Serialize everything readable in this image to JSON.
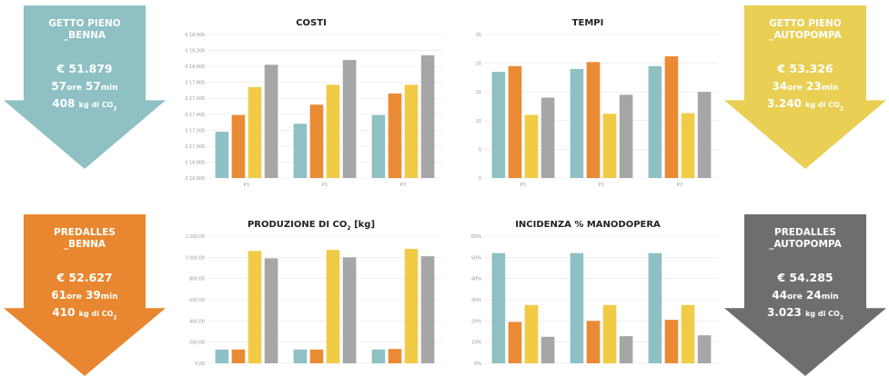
{
  "colors": {
    "teal": "#8ec0c4",
    "orange": "#ea8a34",
    "yellow": "#f1cb46",
    "gray": "#a6a6a6",
    "dark_gray": "#6e6e6e",
    "grid": "#e6e6e6"
  },
  "arrows": [
    {
      "id": "getto-benna",
      "line1": "GETTO PIENO",
      "line2": "_BENNA",
      "cost": "€ 51.879",
      "hours": "57",
      "hours_unit": "ore",
      "minutes": "57",
      "minutes_unit": "min",
      "co2": "408",
      "co2_unit": "kg di CO",
      "co2_sub": "2",
      "color": "#8ec0c4"
    },
    {
      "id": "getto-autopompa",
      "line1": "GETTO PIENO",
      "line2": "_AUTOPOMPA",
      "cost": "€ 53.326",
      "hours": "34",
      "hours_unit": "ore",
      "minutes": "23",
      "minutes_unit": "min",
      "co2": "3.240",
      "co2_unit": "kg di CO",
      "co2_sub": "2",
      "color": "#e9cf53"
    },
    {
      "id": "predalles-benna",
      "line1": "PREDALLES",
      "line2": "_BENNA",
      "cost": "€ 52.627",
      "hours": "61",
      "hours_unit": "ore",
      "minutes": "39",
      "minutes_unit": "min",
      "co2": "410",
      "co2_unit": "kg di CO",
      "co2_sub": "2",
      "color": "#e8872f"
    },
    {
      "id": "predalles-autopompa",
      "line1": "PREDALLES",
      "line2": "_AUTOPOMPA",
      "cost": "€ 54.285",
      "hours": "44",
      "hours_unit": "ore",
      "minutes": "24",
      "minutes_unit": "min",
      "co2": "3.023",
      "co2_unit": "kg di CO",
      "co2_sub": "2",
      "color": "#6e6e6e"
    }
  ],
  "chart_data": [
    {
      "id": "costi",
      "type": "bar",
      "title": "COSTI",
      "categories": [
        "P1",
        "P1",
        "P2"
      ],
      "ylim": [
        16600,
        18400
      ],
      "yticks": [
        "€ 16.600",
        "€ 16.800",
        "€ 17.000",
        "€ 17.200",
        "€ 17.400",
        "€ 17.600",
        "€ 17.800",
        "€ 18.000",
        "€ 18.200",
        "€ 18.400"
      ],
      "ytick_values": [
        16600,
        16800,
        17000,
        17200,
        17400,
        17600,
        17800,
        18000,
        18200,
        18400
      ],
      "series": [
        {
          "values": [
            17180,
            17280,
            17390
          ]
        },
        {
          "values": [
            17390,
            17520,
            17660
          ]
        },
        {
          "values": [
            17740,
            17770,
            17770
          ]
        },
        {
          "values": [
            18020,
            18080,
            18140
          ]
        }
      ],
      "grid": true
    },
    {
      "id": "tempi",
      "type": "bar",
      "title": "TEMPI",
      "categories": [
        "P1",
        "P1",
        "P2"
      ],
      "ylim": [
        0,
        25
      ],
      "yticks": [
        "0",
        "5",
        "10",
        "15",
        "20",
        "25"
      ],
      "ytick_values": [
        0,
        5,
        10,
        15,
        20,
        25
      ],
      "series": [
        {
          "values": [
            18.5,
            19.0,
            19.5
          ]
        },
        {
          "values": [
            19.5,
            20.2,
            21.2
          ]
        },
        {
          "values": [
            11.0,
            11.2,
            11.3
          ]
        },
        {
          "values": [
            14.0,
            14.5,
            15.0
          ]
        }
      ],
      "grid": true
    },
    {
      "id": "co2",
      "type": "bar",
      "title": "PRODUZIONE DI CO",
      "title_sub": "2",
      "title_suffix": " [kg]",
      "categories": [
        "",
        "",
        ""
      ],
      "ylim": [
        0,
        1200
      ],
      "yticks": [
        "0,00",
        "200,00",
        "400,00",
        "600,00",
        "800,00",
        "1.000,00",
        "1.200,00"
      ],
      "ytick_values": [
        0,
        200,
        400,
        600,
        800,
        1000,
        1200
      ],
      "series": [
        {
          "values": [
            130,
            130,
            130
          ]
        },
        {
          "values": [
            130,
            130,
            135
          ]
        },
        {
          "values": [
            1060,
            1070,
            1080
          ]
        },
        {
          "values": [
            990,
            1000,
            1010
          ]
        }
      ],
      "grid": true
    },
    {
      "id": "manodopera",
      "type": "bar",
      "title": "INCIDENZA % MANODOPERA",
      "categories": [
        "",
        "",
        ""
      ],
      "ylim": [
        0,
        60
      ],
      "yticks": [
        "0%",
        "10%",
        "20%",
        "30%",
        "40%",
        "50%",
        "60%"
      ],
      "ytick_values": [
        0,
        10,
        20,
        30,
        40,
        50,
        60
      ],
      "series": [
        {
          "values": [
            52,
            52,
            52
          ]
        },
        {
          "values": [
            19.5,
            20,
            20.5
          ]
        },
        {
          "values": [
            27.5,
            27.5,
            27.5
          ]
        },
        {
          "values": [
            12.5,
            12.8,
            13.2
          ]
        }
      ],
      "grid": true
    }
  ]
}
